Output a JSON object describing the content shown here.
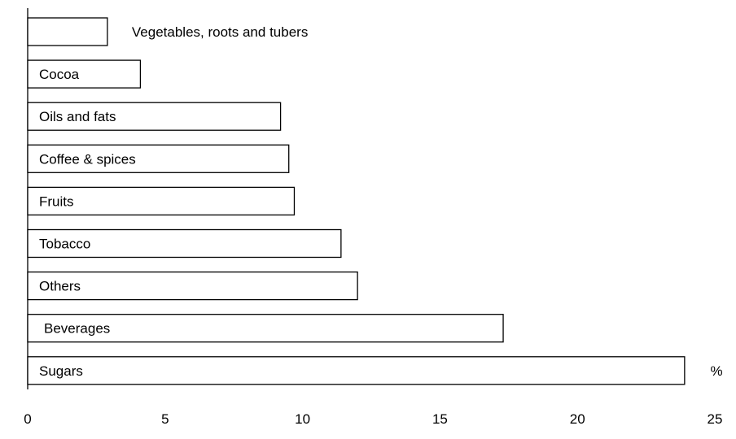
{
  "chart_data": {
    "type": "bar",
    "orientation": "horizontal",
    "categories": [
      "Vegetables, roots and tubers",
      "Cocoa",
      "Oils and fats",
      "Coffee & spices",
      "Fruits",
      "Tobacco",
      "Others",
      "Beverages",
      "Sugars"
    ],
    "values": [
      2.9,
      4.1,
      9.2,
      9.5,
      9.7,
      11.4,
      12.0,
      17.3,
      23.9
    ],
    "xlim": [
      0,
      25
    ],
    "xticks": [
      "0",
      "5",
      "10",
      "15",
      "20",
      "25"
    ],
    "unit_label": "%",
    "grid": false,
    "legend": "none",
    "colors": {
      "bar_fill": "#ffffff",
      "bar_stroke": "#000000"
    }
  }
}
